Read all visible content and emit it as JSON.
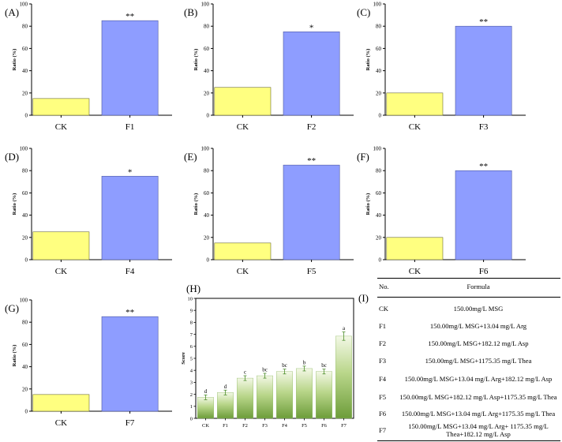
{
  "colors": {
    "ck_bar": "#ffff80",
    "treat_bar": "#8e9dff",
    "ck_stroke": "#6b6b30",
    "treat_stroke": "#4a55a0",
    "green_top": "#f3f8e6",
    "green_bottom": "#6d9d3a",
    "error_bar": "#4e8f2d"
  },
  "ratio_ylabel": "Ratio (%)",
  "score_ylabel": "Score",
  "chart_data": [
    {
      "panel": "(A)",
      "type": "bar",
      "categories": [
        "CK",
        "F1"
      ],
      "values": [
        15,
        85
      ],
      "sig": "**",
      "ylabel": "Ratio (%)",
      "ylim": [
        0,
        100
      ],
      "yticks": [
        0,
        20,
        40,
        60,
        80,
        100
      ]
    },
    {
      "panel": "(B)",
      "type": "bar",
      "categories": [
        "CK",
        "F2"
      ],
      "values": [
        25,
        75
      ],
      "sig": "*",
      "ylabel": "Ratio (%)",
      "ylim": [
        0,
        100
      ],
      "yticks": [
        0,
        20,
        40,
        60,
        80,
        100
      ]
    },
    {
      "panel": "(C)",
      "type": "bar",
      "categories": [
        "CK",
        "F3"
      ],
      "values": [
        20,
        80
      ],
      "sig": "**",
      "ylabel": "Ratio (%)",
      "ylim": [
        0,
        100
      ],
      "yticks": [
        0,
        20,
        40,
        60,
        80,
        100
      ]
    },
    {
      "panel": "(D)",
      "type": "bar",
      "categories": [
        "CK",
        "F4"
      ],
      "values": [
        25,
        75
      ],
      "sig": "*",
      "ylabel": "Ratio (%)",
      "ylim": [
        0,
        100
      ],
      "yticks": [
        0,
        20,
        40,
        60,
        80,
        100
      ]
    },
    {
      "panel": "(E)",
      "type": "bar",
      "categories": [
        "CK",
        "F5"
      ],
      "values": [
        15,
        85
      ],
      "sig": "**",
      "ylabel": "Ratio (%)",
      "ylim": [
        0,
        100
      ],
      "yticks": [
        0,
        20,
        40,
        60,
        80,
        100
      ]
    },
    {
      "panel": "(F)",
      "type": "bar",
      "categories": [
        "CK",
        "F6"
      ],
      "values": [
        20,
        80
      ],
      "sig": "**",
      "ylabel": "Ratio (%)",
      "ylim": [
        0,
        100
      ],
      "yticks": [
        0,
        20,
        40,
        60,
        80,
        100
      ]
    },
    {
      "panel": "(G)",
      "type": "bar",
      "categories": [
        "CK",
        "F7"
      ],
      "values": [
        15,
        85
      ],
      "sig": "**",
      "ylabel": "Ratio (%)",
      "ylim": [
        0,
        100
      ],
      "yticks": [
        0,
        20,
        40,
        60,
        80,
        100
      ]
    },
    {
      "panel": "(H)",
      "type": "bar",
      "categories": [
        "CK",
        "F1",
        "F2",
        "F3",
        "F4",
        "F5",
        "F6",
        "F7"
      ],
      "values": [
        1.75,
        2.15,
        3.35,
        3.55,
        3.9,
        4.15,
        3.9,
        6.85
      ],
      "errors": [
        0.2,
        0.2,
        0.2,
        0.2,
        0.2,
        0.2,
        0.2,
        0.35
      ],
      "letters": [
        "d",
        "d",
        "c",
        "bc",
        "bc",
        "b",
        "bc",
        "a"
      ],
      "ylabel": "Score",
      "ylim": [
        0,
        10
      ],
      "yticks": [
        0,
        1,
        2,
        3,
        4,
        5,
        6,
        7,
        8,
        9,
        10
      ]
    }
  ],
  "table": {
    "panel": "(I)",
    "header_no": "No.",
    "header_formula": "Formula",
    "rows": [
      {
        "no": "CK",
        "formula": "150.00mg/L MSG"
      },
      {
        "no": "F1",
        "formula": "150.00mg/L MSG+13.04 mg/L Arg"
      },
      {
        "no": "F2",
        "formula": "150.00mg/L MSG+182.12 mg/L Asp"
      },
      {
        "no": "F3",
        "formula": "150.00mg/L MSG+1175.35 mg/L Thea"
      },
      {
        "no": "F4",
        "formula": "150.00mg/L MSG+13.04 mg/L Arg+182.12 mg/L Asp"
      },
      {
        "no": "F5",
        "formula": "150.00mg/L MSG+182.12 mg/L Asp+1175.35 mg/L Thea"
      },
      {
        "no": "F6",
        "formula": "150.00mg/L MSG+13.04 mg/L Arg+1175.35 mg/L Thea"
      },
      {
        "no": "F7",
        "formula": "150.00mg/L MSG+13.04 mg/L Arg+ 1175.35 mg/L Thea+182.12 mg/L Asp"
      }
    ]
  }
}
